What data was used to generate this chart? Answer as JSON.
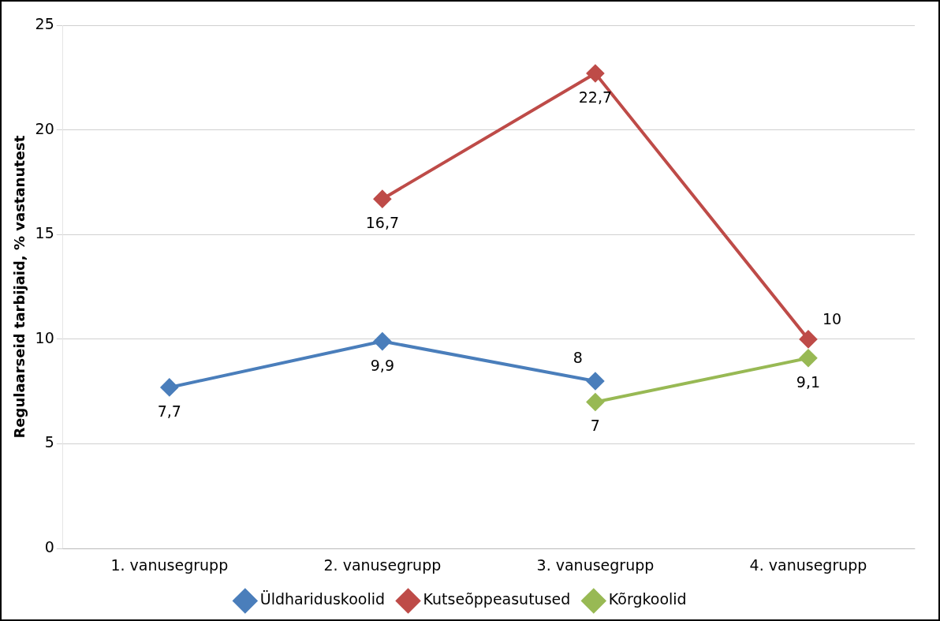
{
  "chart_data": {
    "type": "line",
    "ylabel": "Regulaarseid tarbijaid, % vastanutest",
    "categories": [
      "1. vanusegrupp",
      "2. vanusegrupp",
      "3. vanusegrupp",
      "4. vanusegrupp"
    ],
    "series": [
      {
        "name": "Üldhariduskoolid",
        "color": "#4a7ebb",
        "values": [
          7.7,
          9.9,
          8,
          null
        ],
        "value_labels": [
          "7,7",
          "9,9",
          "8",
          null
        ]
      },
      {
        "name": "Kutseõppeasutused",
        "color": "#be4b48",
        "values": [
          null,
          16.7,
          22.7,
          10
        ],
        "value_labels": [
          null,
          "16,7",
          "22,7",
          "10"
        ]
      },
      {
        "name": "Kõrgkoolid",
        "color": "#98b954",
        "values": [
          null,
          null,
          7,
          9.1
        ],
        "value_labels": [
          null,
          null,
          "7",
          "9,1"
        ]
      }
    ],
    "ylim": [
      0,
      25
    ],
    "yticks": [
      0,
      5,
      10,
      15,
      20,
      25
    ],
    "grid": "y",
    "legend": "bottom",
    "marker": "diamond",
    "line_style": "solid"
  }
}
